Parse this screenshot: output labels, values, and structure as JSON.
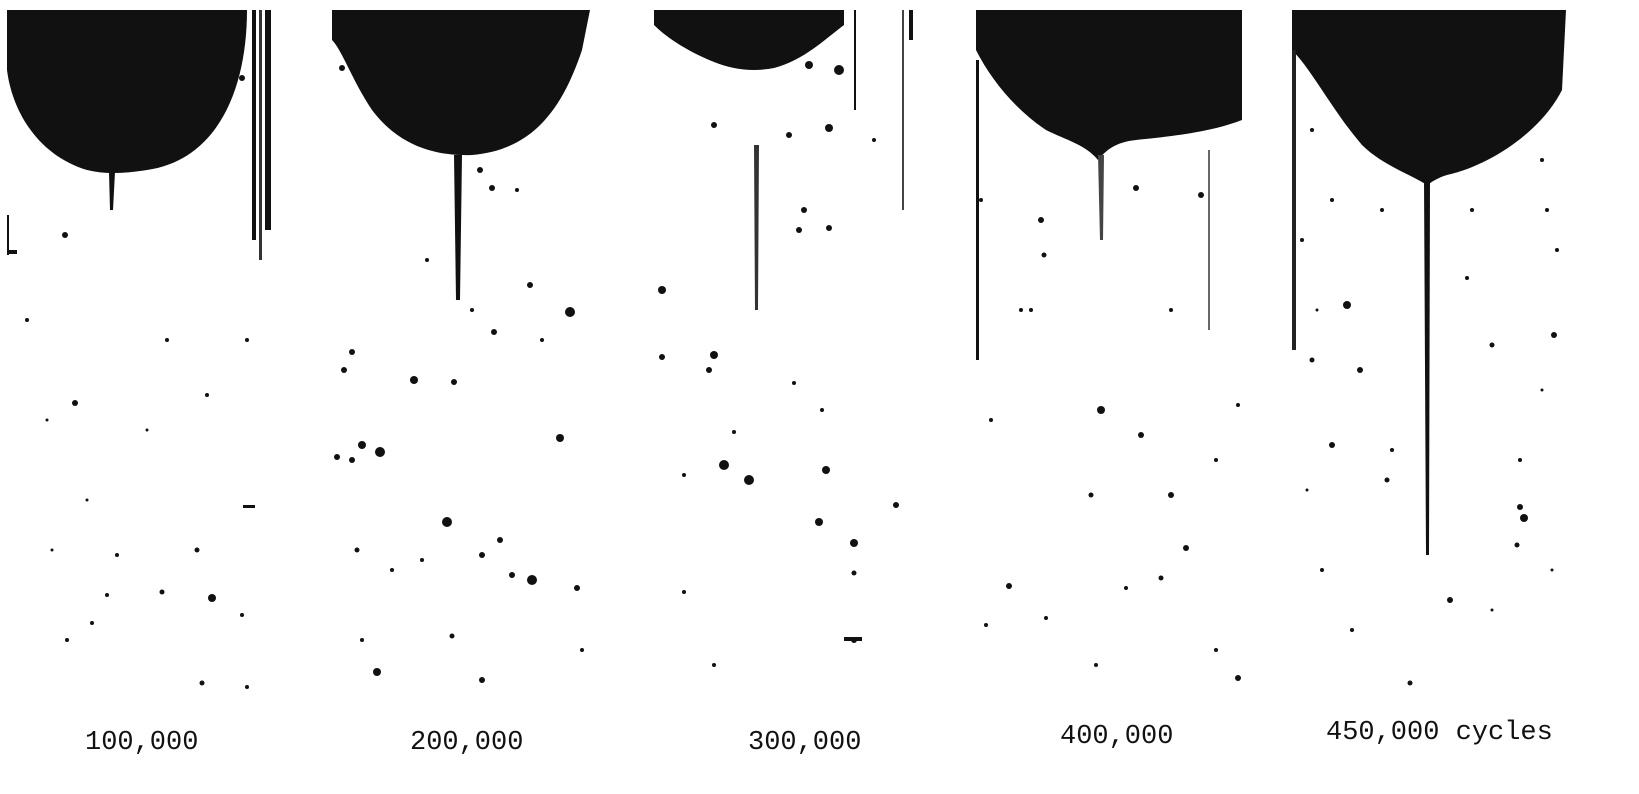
{
  "panels": [
    {
      "caption": "100,000"
    },
    {
      "caption": "200,000"
    },
    {
      "caption": "300,000"
    },
    {
      "caption": "400,000"
    },
    {
      "caption": "450,000 cycles"
    }
  ],
  "colors": {
    "ink": "#111111",
    "background": "#ffffff"
  }
}
